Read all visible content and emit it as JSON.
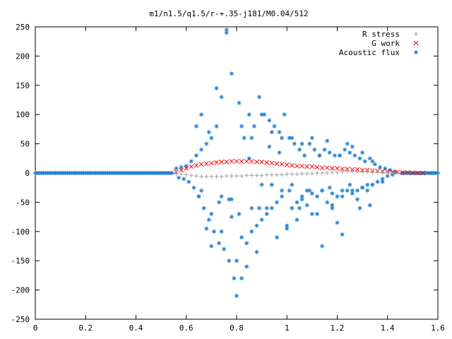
{
  "chart_data": {
    "type": "scatter",
    "title": "m1/n1.5/q1.5/r-+.35-j181/M0.04/512",
    "xlabel": "",
    "ylabel": "",
    "xlim": [
      0,
      1.6
    ],
    "ylim": [
      -250,
      250
    ],
    "x_ticks": [
      "0",
      "0.2",
      "0.4",
      "0.6",
      "0.8",
      "1",
      "1.2",
      "1.4",
      "1.6"
    ],
    "y_ticks": [
      "250",
      "200",
      "150",
      "100",
      "50",
      "0",
      "-50",
      "-100",
      "-150",
      "-200",
      "-250"
    ],
    "legend_position": "top-right",
    "series": [
      {
        "name": "R stress",
        "marker": "plus",
        "color": "#a0a0a0",
        "x": [
          0.56,
          0.58,
          0.6,
          0.62,
          0.64,
          0.66,
          0.68,
          0.7,
          0.72,
          0.74,
          0.76,
          0.78,
          0.8,
          0.82,
          0.84,
          0.86,
          0.88,
          0.9,
          0.92,
          0.94,
          0.96,
          0.98,
          1.0,
          1.02,
          1.04,
          1.06,
          1.08,
          1.1,
          1.12,
          1.14,
          1.16,
          1.18,
          1.2,
          1.22,
          1.24,
          1.26,
          1.28,
          1.3,
          1.32,
          1.34,
          1.36,
          1.38,
          1.4,
          1.42,
          1.44
        ],
        "y": [
          -1,
          -2,
          -3,
          -4,
          -5,
          -6,
          -6,
          -6,
          -6,
          -6,
          -5,
          -5,
          -5,
          -5,
          -4,
          -4,
          -4,
          -4,
          -3,
          -3,
          -3,
          -3,
          -2,
          -2,
          -2,
          -1,
          -1,
          -1,
          0,
          0,
          0,
          1,
          1,
          2,
          3,
          3,
          2,
          2,
          2,
          1,
          1,
          0,
          0,
          0,
          0
        ]
      },
      {
        "name": "G work",
        "marker": "cross",
        "color": "#ff0000",
        "x": [
          0.56,
          0.58,
          0.6,
          0.62,
          0.64,
          0.66,
          0.68,
          0.7,
          0.72,
          0.74,
          0.76,
          0.78,
          0.8,
          0.82,
          0.84,
          0.86,
          0.88,
          0.9,
          0.92,
          0.94,
          0.96,
          0.98,
          1.0,
          1.02,
          1.04,
          1.06,
          1.08,
          1.1,
          1.12,
          1.14,
          1.16,
          1.18,
          1.2,
          1.22,
          1.24,
          1.26,
          1.28,
          1.3,
          1.32,
          1.34,
          1.36,
          1.38,
          1.4,
          1.42,
          1.44,
          1.46,
          1.48,
          1.5,
          1.52,
          1.54
        ],
        "y": [
          2,
          5,
          8,
          11,
          13,
          15,
          16,
          17,
          18,
          19,
          19,
          20,
          20,
          20,
          20,
          20,
          19,
          19,
          18,
          17,
          16,
          15,
          14,
          13,
          12,
          12,
          11,
          11,
          10,
          9,
          9,
          8,
          8,
          7,
          7,
          6,
          6,
          5,
          5,
          4,
          4,
          3,
          3,
          2,
          2,
          1,
          1,
          0,
          0,
          0
        ]
      },
      {
        "name": "Acoustic flux",
        "marker": "star",
        "color": "#1e7fd6",
        "x": [
          0.56,
          0.57,
          0.58,
          0.59,
          0.6,
          0.61,
          0.62,
          0.63,
          0.64,
          0.65,
          0.66,
          0.67,
          0.68,
          0.69,
          0.7,
          0.71,
          0.72,
          0.73,
          0.74,
          0.75,
          0.76,
          0.77,
          0.78,
          0.79,
          0.8,
          0.81,
          0.82,
          0.83,
          0.84,
          0.85,
          0.86,
          0.87,
          0.88,
          0.89,
          0.9,
          0.91,
          0.92,
          0.93,
          0.94,
          0.95,
          0.96,
          0.97,
          0.98,
          0.99,
          1.0,
          1.01,
          1.02,
          1.03,
          1.04,
          1.05,
          1.06,
          1.07,
          1.08,
          1.09,
          1.1,
          1.11,
          1.12,
          1.13,
          1.14,
          1.15,
          1.16,
          1.17,
          1.18,
          1.19,
          1.2,
          1.21,
          1.22,
          1.23,
          1.24,
          1.25,
          1.26,
          1.27,
          1.28,
          1.29,
          1.3,
          1.31,
          1.32,
          1.33,
          1.34,
          1.35,
          1.36,
          1.37,
          1.38,
          1.39,
          1.4,
          1.41,
          1.42,
          1.43,
          0.64,
          0.66,
          0.68,
          0.7,
          0.72,
          0.74,
          0.76,
          0.78,
          0.8,
          0.82,
          0.84,
          0.86,
          0.88,
          0.9,
          0.92,
          0.94,
          0.96,
          0.98,
          1.0,
          1.02,
          1.04,
          1.06,
          1.08,
          1.1,
          1.12,
          1.14,
          1.16,
          1.18,
          1.2,
          1.22,
          1.24,
          1.26,
          1.28,
          1.3,
          1.32,
          1.34,
          0.65,
          0.69,
          0.73,
          0.77,
          0.81,
          0.85,
          0.89,
          0.93,
          0.97,
          1.01,
          1.05,
          1.09,
          1.13,
          1.17,
          1.21,
          1.25,
          1.29,
          1.33,
          0.66,
          0.7,
          0.74,
          0.78,
          0.82,
          0.86,
          0.9,
          0.94,
          0.98,
          1.02,
          1.06,
          1.1,
          1.14,
          1.18,
          1.22,
          1.26,
          1.3,
          1.34,
          1.38
        ],
        "y": [
          8,
          -8,
          10,
          -10,
          12,
          -15,
          20,
          -25,
          30,
          -40,
          40,
          -60,
          50,
          -80,
          60,
          -100,
          80,
          -120,
          130,
          -130,
          240,
          -150,
          170,
          -180,
          -210,
          120,
          -180,
          60,
          -120,
          100,
          -100,
          80,
          -90,
          130,
          -80,
          100,
          -70,
          90,
          -60,
          80,
          -50,
          70,
          -40,
          100,
          -90,
          60,
          -60,
          50,
          -50,
          40,
          -40,
          30,
          -30,
          50,
          -70,
          40,
          -40,
          30,
          -30,
          40,
          -50,
          35,
          -35,
          30,
          -40,
          30,
          -30,
          40,
          -30,
          35,
          -35,
          30,
          -30,
          25,
          -25,
          20,
          -20,
          25,
          -20,
          15,
          -15,
          10,
          -10,
          8,
          -5,
          5,
          -3,
          2,
          80,
          100,
          -95,
          -125,
          145,
          -100,
          245,
          -75,
          -150,
          80,
          -160,
          60,
          -135,
          100,
          -60,
          70,
          -110,
          60,
          -95,
          60,
          -80,
          50,
          -55,
          60,
          -70,
          -125,
          55,
          -60,
          -85,
          -105,
          50,
          45,
          -45,
          35,
          -30,
          20,
          -40,
          70,
          -50,
          -45,
          -70,
          25,
          -60,
          45,
          35,
          -30,
          -60,
          -30,
          30,
          -25,
          30,
          -20,
          -60,
          -55,
          -30,
          -70,
          -40,
          -45,
          -110,
          -60,
          -20,
          -20,
          -30,
          -20,
          -45,
          -35,
          -30,
          -55,
          -40,
          -30,
          -25,
          -20,
          -15
        ]
      }
    ]
  },
  "legend": {
    "r_stress_label": "R stress",
    "g_work_label": "G work",
    "acoustic_flux_label": "Acoustic flux"
  },
  "colors": {
    "r_stress": "#a0a0a0",
    "g_work": "#ff0000",
    "acoustic_flux": "#1e7fd6",
    "axis": "#000000"
  }
}
